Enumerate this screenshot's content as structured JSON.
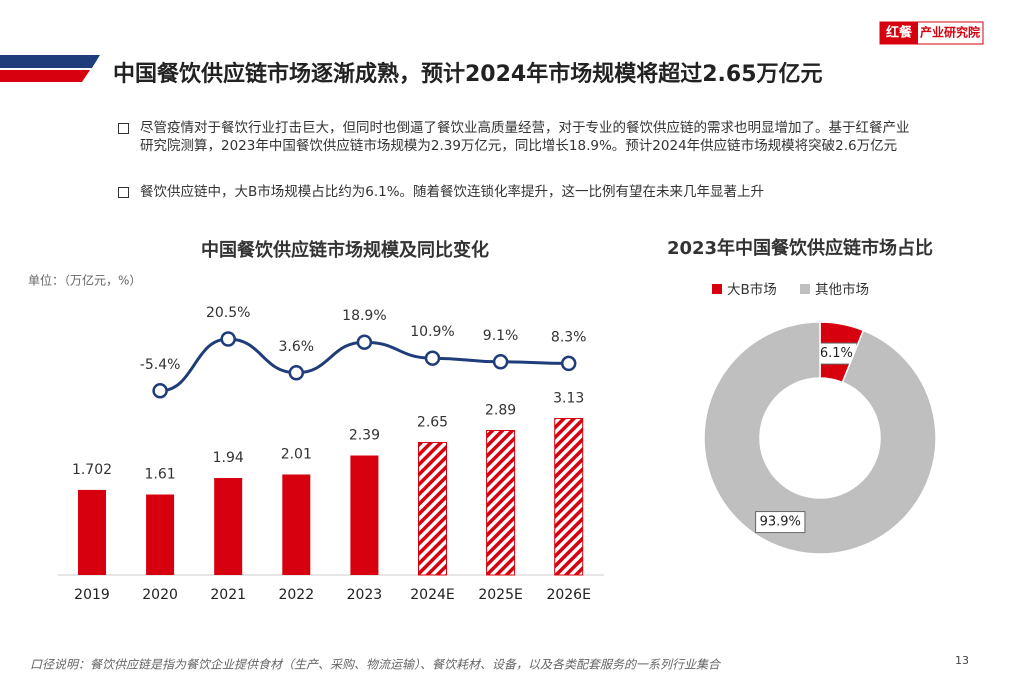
{
  "header": {
    "title": "中国餐饮供应链市场逐渐成熟，预计2024年市场规模将超过2.65万亿元",
    "logo_mark": "红餐",
    "logo_text": "产业研究院"
  },
  "bullets": [
    "尽管疫情对于餐饮行业打击巨大，但同时也倒逼了餐饮业高质量经营，对于专业的餐饮供应链的需求也明显增加了。基于红餐产业研究院测算，2023年中国餐饮供应链市场规模为2.39万亿元，同比增长18.9%。预计2024年供应链市场规模将突破2.6万亿元",
    "餐饮供应链中，大B市场规模占比约为6.1%。随着餐饮连锁化率提升，这一比例有望在未来几年显著上升"
  ],
  "footnote": "口径说明：餐饮供应链是指为餐饮企业提供食材（生产、采购、物流运输）、餐饮耗材、设备，以及各类配套服务的一系列行业集合",
  "page_number": "13",
  "chart_data": [
    {
      "type": "bar",
      "title": "中国餐饮供应链市场规模及同比变化",
      "unit_label": "单位：（万亿元，%）",
      "categories": [
        "2019",
        "2020",
        "2021",
        "2022",
        "2023",
        "2024E",
        "2025E",
        "2026E"
      ],
      "series": [
        {
          "color": "#d7000f",
          "values": [
            1.702,
            1.61,
            1.94,
            2.01,
            2.39,
            2.65,
            2.89,
            3.13
          ],
          "hatched": [
            false,
            false,
            false,
            false,
            false,
            true,
            true,
            true
          ]
        },
        {
          "type": "line",
          "axis": "y2",
          "color": "#1f3d7a",
          "values": [
            null,
            -5.4,
            20.5,
            3.6,
            18.9,
            10.9,
            9.1,
            8.3
          ],
          "value_labels": [
            null,
            "-5.4%",
            "20.5%",
            "3.6%",
            "18.9%",
            "10.9%",
            "9.1%",
            "8.3%"
          ]
        }
      ],
      "ylim": [
        0,
        4
      ],
      "y2lim": [
        -10,
        40
      ]
    },
    {
      "type": "pie",
      "title": "2023年中国餐饮供应链市场占比",
      "donut": true,
      "categories": [
        "大B市场",
        "其他市场"
      ],
      "values": [
        6.1,
        93.9
      ],
      "value_labels": [
        "6.1%",
        "93.9%"
      ],
      "colors": [
        "#d7000f",
        "#bfbfbf"
      ]
    }
  ]
}
